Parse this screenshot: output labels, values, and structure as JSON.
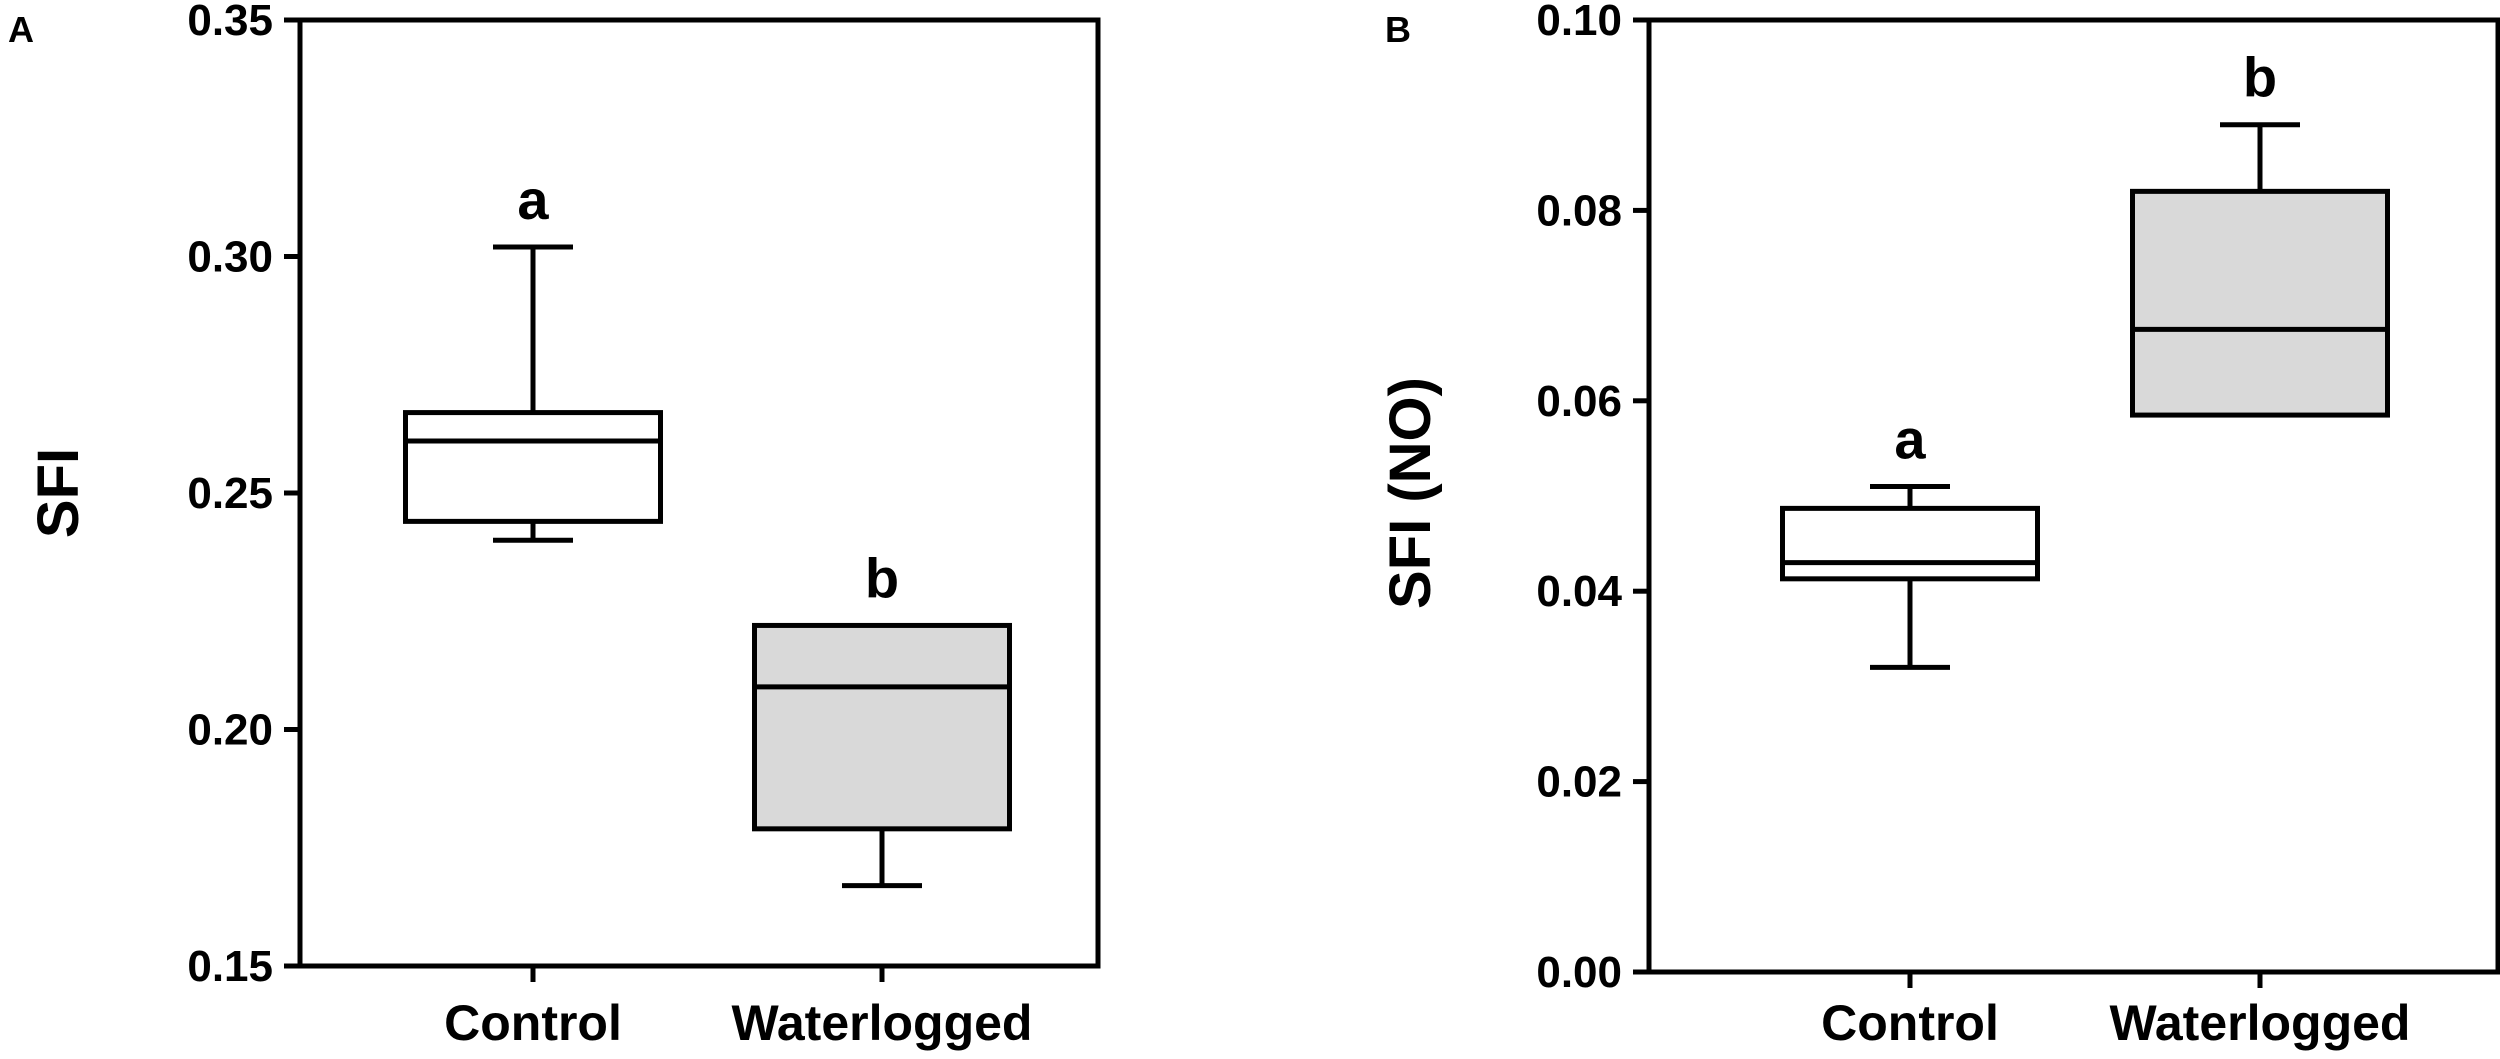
{
  "colors": {
    "control_fill": "#ffffff",
    "waterlogged_fill": "#d9d9d9",
    "stroke": "#000000"
  },
  "chart_data": [
    {
      "panel": "A",
      "type": "box",
      "title": "",
      "ylabel": "SFI",
      "xlabel": "",
      "ylim": [
        0.15,
        0.35
      ],
      "yticks": [
        0.15,
        0.2,
        0.25,
        0.3,
        0.35
      ],
      "ytick_labels": [
        "0.15",
        "0.20",
        "0.25",
        "0.30",
        "0.35"
      ],
      "grid": false,
      "categories": [
        "Control",
        "Waterlogged"
      ],
      "boxes": [
        {
          "category": "Control",
          "min": 0.24,
          "q1": 0.244,
          "median": 0.261,
          "q3": 0.267,
          "max": 0.302,
          "letter": "a",
          "fill": "#ffffff"
        },
        {
          "category": "Waterlogged",
          "min": 0.167,
          "q1": 0.179,
          "median": 0.209,
          "q3": 0.222,
          "max": 0.222,
          "letter": "b",
          "fill": "#d9d9d9"
        }
      ]
    },
    {
      "panel": "B",
      "type": "box",
      "title": "",
      "ylabel": "SFI (NO)",
      "xlabel": "",
      "ylim": [
        0.0,
        0.1
      ],
      "yticks": [
        0.0,
        0.02,
        0.04,
        0.06,
        0.08,
        0.1
      ],
      "ytick_labels": [
        "0.00",
        "0.02",
        "0.04",
        "0.06",
        "0.08",
        "0.10"
      ],
      "grid": false,
      "categories": [
        "Control",
        "Waterlogged"
      ],
      "boxes": [
        {
          "category": "Control",
          "min": 0.032,
          "q1": 0.0413,
          "median": 0.043,
          "q3": 0.0487,
          "max": 0.051,
          "letter": "a",
          "fill": "#ffffff"
        },
        {
          "category": "Waterlogged",
          "min": 0.0585,
          "q1": 0.0585,
          "median": 0.0675,
          "q3": 0.082,
          "max": 0.089,
          "letter": "b",
          "fill": "#d9d9d9"
        }
      ]
    }
  ]
}
